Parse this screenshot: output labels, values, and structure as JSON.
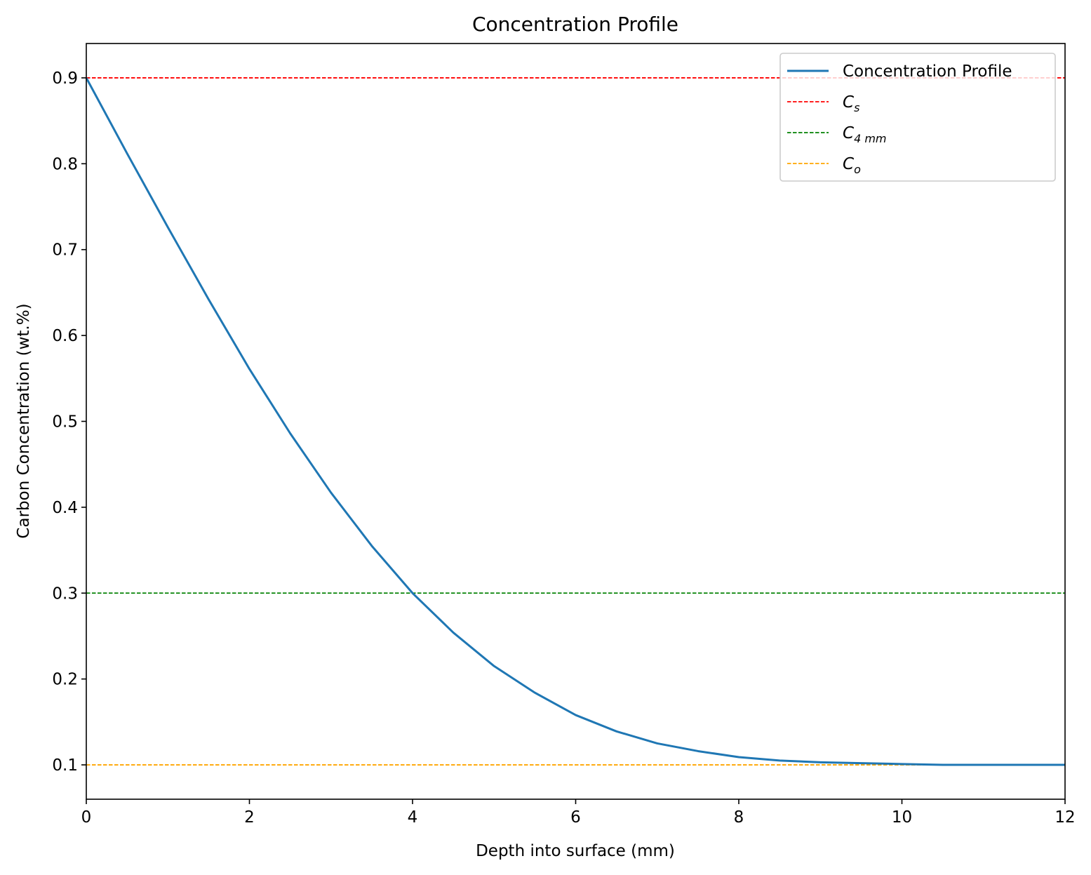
{
  "chart_data": {
    "type": "line",
    "title": "Concentration Profile",
    "xlabel": "Depth into surface (mm)",
    "ylabel": "Carbon Concentration (wt.%)",
    "xlim": [
      0,
      12
    ],
    "ylim": [
      0.06,
      0.94
    ],
    "xticks": [
      0,
      2,
      4,
      6,
      8,
      10,
      12
    ],
    "yticks": [
      0.1,
      0.2,
      0.3,
      0.4,
      0.5,
      0.6,
      0.7,
      0.8,
      0.9
    ],
    "grid": false,
    "legend_position": "top-right",
    "series": [
      {
        "name": "Concentration Profile",
        "style": "solid",
        "color": "#1f77b4",
        "x": [
          0,
          0.5,
          1,
          1.5,
          2,
          2.5,
          3,
          3.5,
          4,
          4.5,
          5,
          5.5,
          6,
          6.5,
          7,
          7.5,
          8,
          8.5,
          9,
          9.5,
          10,
          10.5,
          11,
          11.5,
          12
        ],
        "y": [
          0.9,
          0.812,
          0.726,
          0.642,
          0.561,
          0.486,
          0.417,
          0.355,
          0.3,
          0.254,
          0.215,
          0.184,
          0.158,
          0.139,
          0.125,
          0.116,
          0.109,
          0.105,
          0.103,
          0.102,
          0.101,
          0.1,
          0.1,
          0.1,
          0.1
        ]
      }
    ],
    "reference_lines": [
      {
        "name": "C",
        "subscript": "s",
        "y": 0.9,
        "style": "dashed",
        "color": "#ff0000"
      },
      {
        "name": "C",
        "subscript": "4 mm",
        "y": 0.3,
        "style": "dashed",
        "color": "#008000"
      },
      {
        "name": "C",
        "subscript": "o",
        "y": 0.1,
        "style": "dashed",
        "color": "#ffa500"
      }
    ]
  }
}
